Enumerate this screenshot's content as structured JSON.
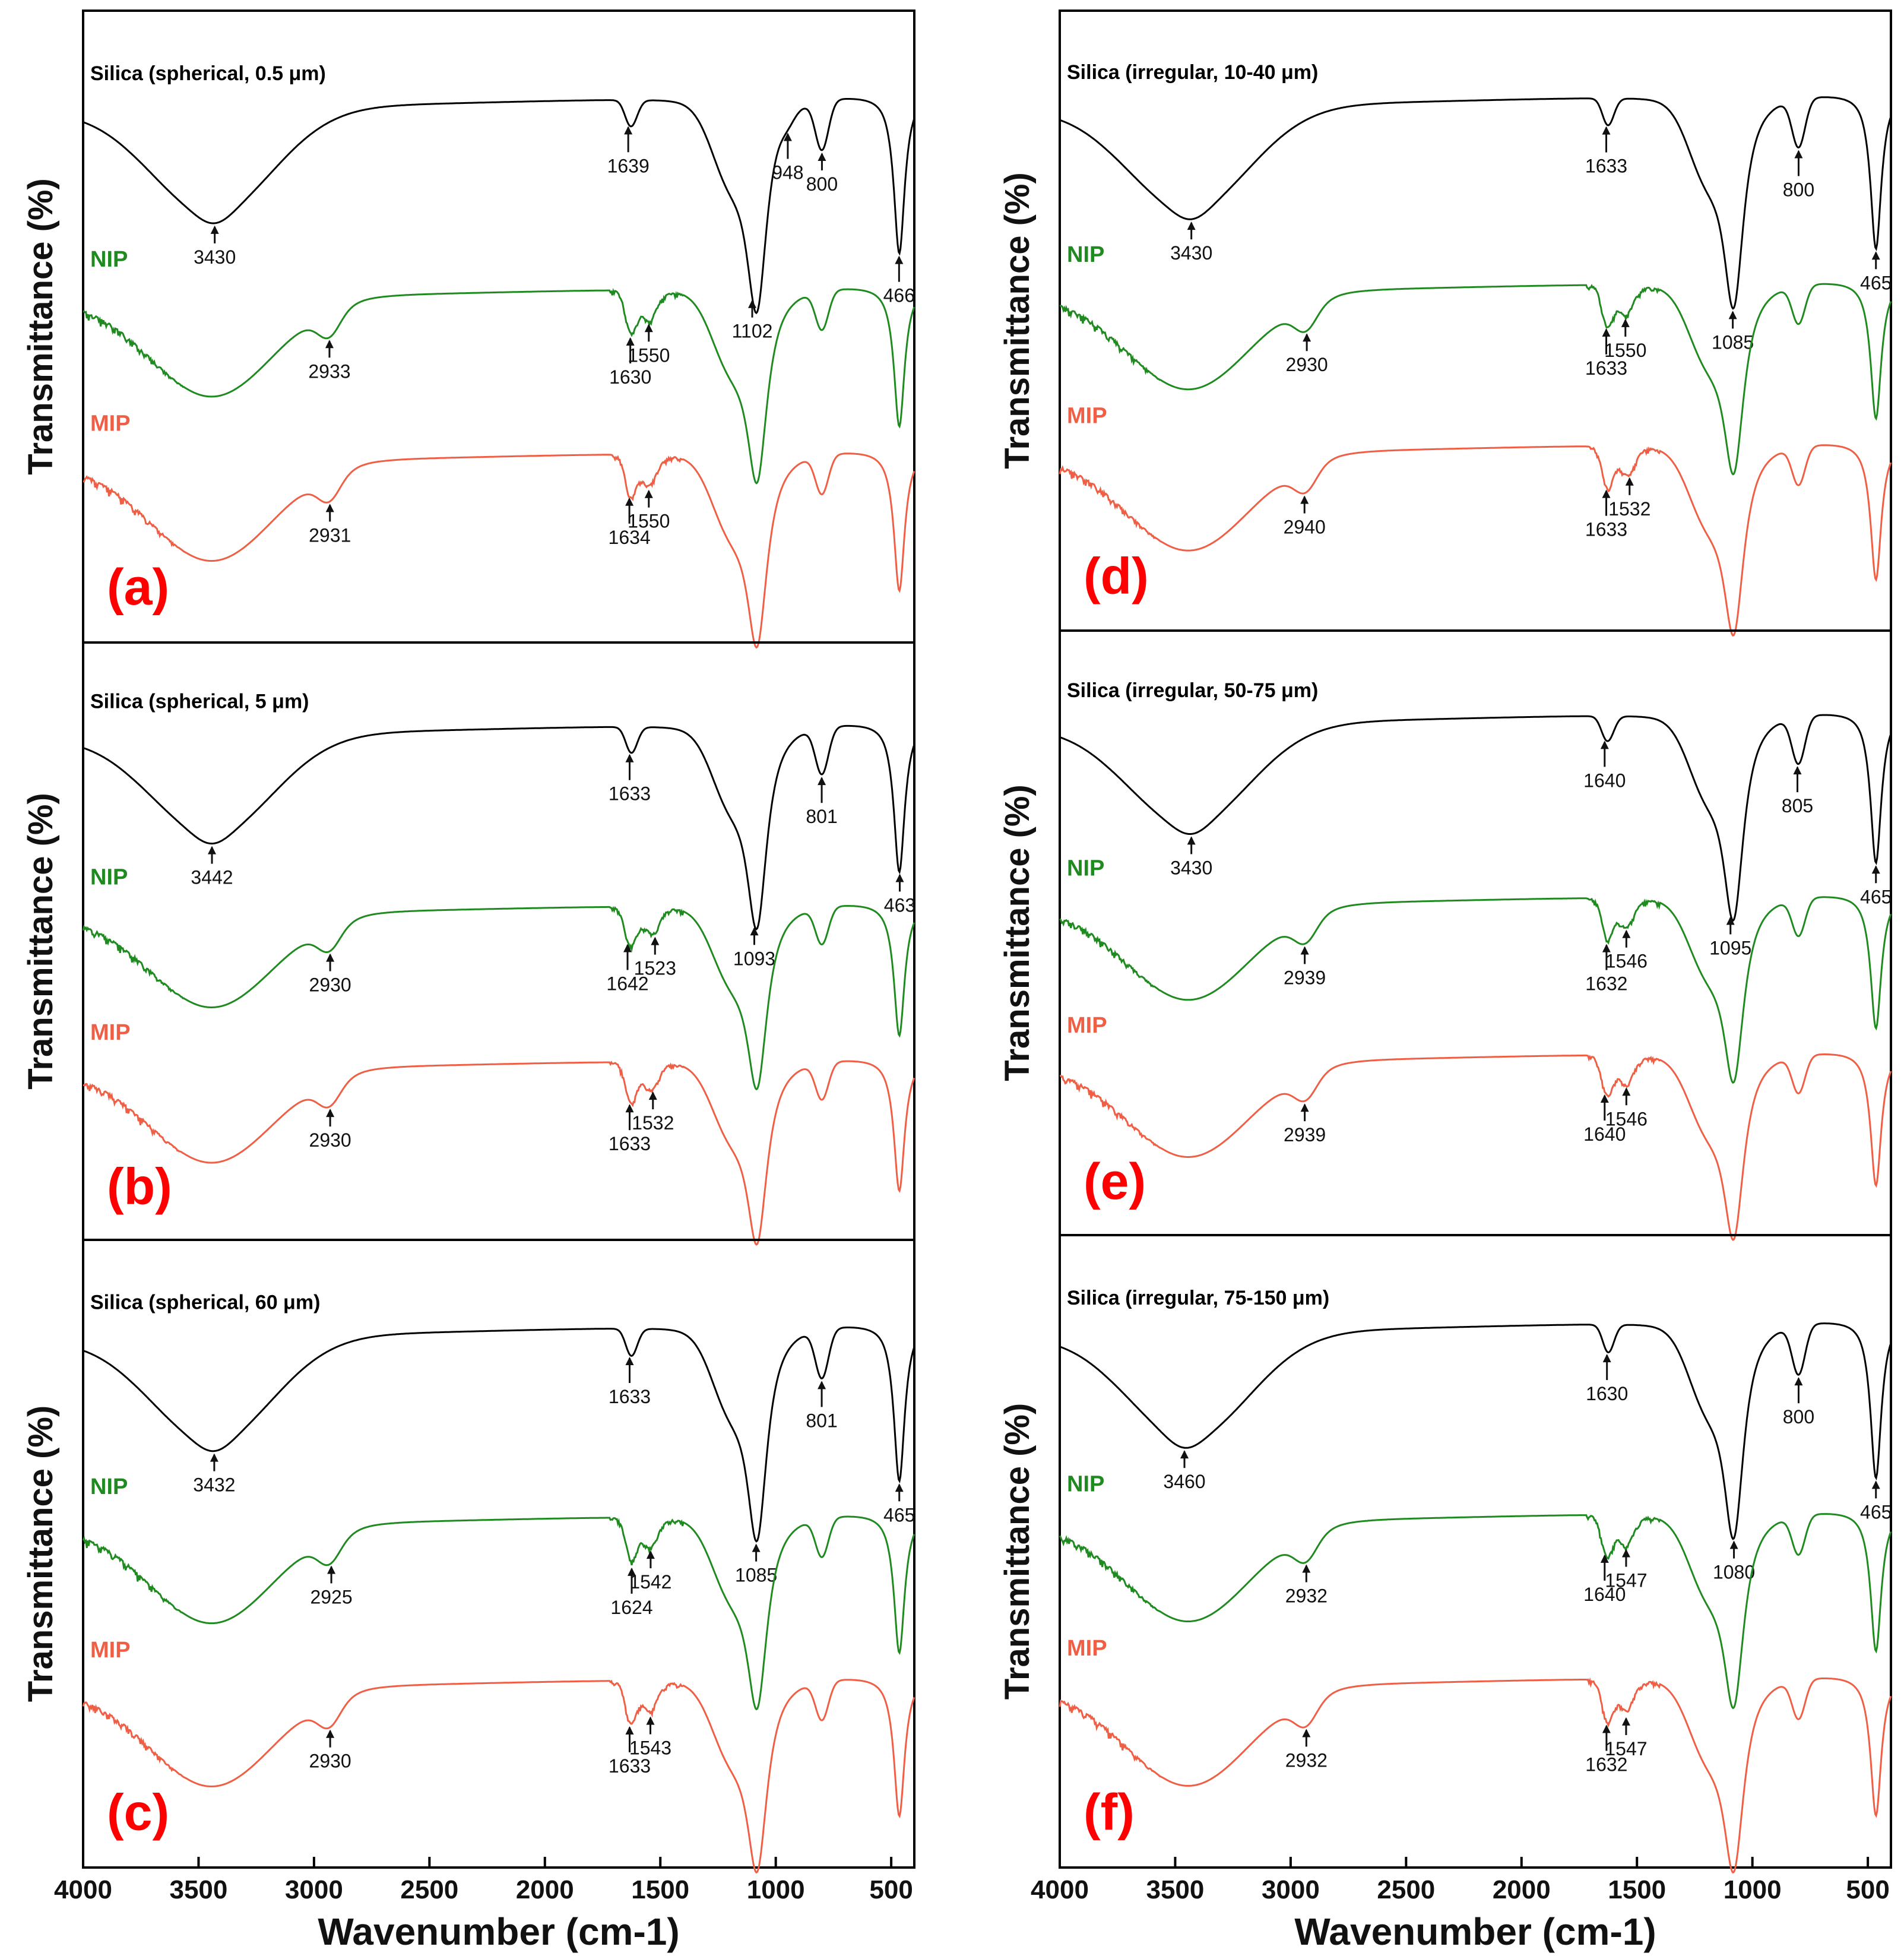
{
  "chart_data": [
    {
      "type": "line",
      "panel_label": "(a)",
      "xlabel": "Wavenumber (cm-1)",
      "ylabel": "Transmittance (%)",
      "xlim": [
        4000,
        400
      ],
      "series": [
        {
          "name": "Silica (spherical, 0.5 μm)",
          "peaks": [
            3430,
            1639,
            1102,
            948,
            800,
            466
          ]
        },
        {
          "name": "NIP",
          "peaks": [
            2933,
            1630,
            1550
          ]
        },
        {
          "name": "MIP",
          "peaks": [
            2931,
            1634,
            1550
          ]
        }
      ]
    },
    {
      "type": "line",
      "panel_label": "(b)",
      "xlabel": "Wavenumber (cm-1)",
      "ylabel": "Transmittance (%)",
      "xlim": [
        4000,
        400
      ],
      "series": [
        {
          "name": "Silica (spherical, 5 μm)",
          "peaks": [
            3442,
            1633,
            1093,
            801,
            463
          ]
        },
        {
          "name": "NIP",
          "peaks": [
            2930,
            1642,
            1523
          ]
        },
        {
          "name": "MIP",
          "peaks": [
            2930,
            1633,
            1532
          ]
        }
      ]
    },
    {
      "type": "line",
      "panel_label": "(c)",
      "xlabel": "Wavenumber (cm-1)",
      "ylabel": "Transmittance (%)",
      "xlim": [
        4000,
        400
      ],
      "x_ticks": [
        4000,
        3500,
        3000,
        2500,
        2000,
        1500,
        1000,
        500
      ],
      "series": [
        {
          "name": "Silica (spherical, 60 μm)",
          "peaks": [
            3432,
            1633,
            1085,
            801,
            465
          ]
        },
        {
          "name": "NIP",
          "peaks": [
            2925,
            1624,
            1542
          ]
        },
        {
          "name": "MIP",
          "peaks": [
            2930,
            1633,
            1543
          ]
        }
      ]
    },
    {
      "type": "line",
      "panel_label": "(d)",
      "xlabel": "Wavenumber (cm-1)",
      "ylabel": "Transmittance (%)",
      "xlim": [
        4000,
        400
      ],
      "series": [
        {
          "name": "Silica (irregular, 10-40 μm)",
          "peaks": [
            3430,
            1633,
            1085,
            800,
            465
          ]
        },
        {
          "name": "NIP",
          "peaks": [
            2930,
            1633,
            1550
          ]
        },
        {
          "name": "MIP",
          "peaks": [
            2940,
            1633,
            1532
          ]
        }
      ]
    },
    {
      "type": "line",
      "panel_label": "(e)",
      "xlabel": "Wavenumber (cm-1)",
      "ylabel": "Transmittance (%)",
      "xlim": [
        4000,
        400
      ],
      "series": [
        {
          "name": "Silica (irregular, 50-75 μm)",
          "peaks": [
            3430,
            1640,
            1095,
            805,
            465
          ]
        },
        {
          "name": "NIP",
          "peaks": [
            2939,
            1632,
            1546
          ]
        },
        {
          "name": "MIP",
          "peaks": [
            2939,
            1640,
            1546
          ]
        }
      ]
    },
    {
      "type": "line",
      "panel_label": "(f)",
      "xlabel": "Wavenumber (cm-1)",
      "ylabel": "Transmittance (%)",
      "xlim": [
        4000,
        400
      ],
      "x_ticks": [
        4000,
        3500,
        3000,
        2500,
        2000,
        1500,
        1000,
        500
      ],
      "series": [
        {
          "name": "Silica (irregular, 75-150 μm)",
          "peaks": [
            3460,
            1630,
            1080,
            800,
            465
          ]
        },
        {
          "name": "NIP",
          "peaks": [
            2932,
            1640,
            1547
          ]
        },
        {
          "name": "MIP",
          "peaks": [
            2932,
            1632,
            1547
          ]
        }
      ]
    }
  ],
  "colors": {
    "silica": "#000000",
    "nip": "#1f8a1f",
    "mip": "#ef5f45",
    "panel_label": "#ff0000",
    "frame": "#000000"
  }
}
